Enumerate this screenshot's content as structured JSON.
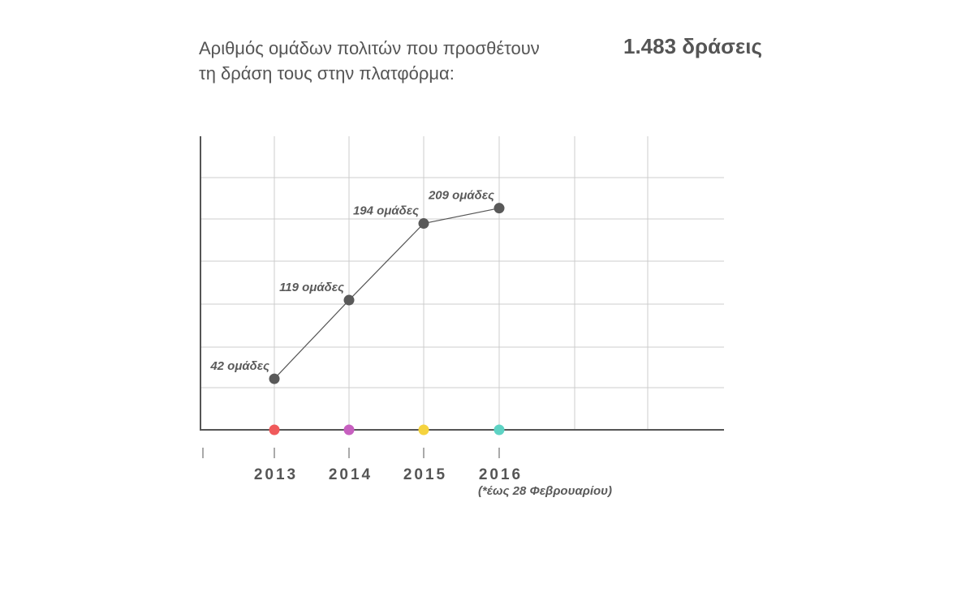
{
  "header": {
    "title_line1": "Αριθμός ομάδων πολιτών που προσθέτουν",
    "title_line2": "τη δράση τους στην πλατφόρμα:",
    "total": "1.483 δράσεις"
  },
  "chart_data": {
    "type": "line",
    "title": "Αριθμός ομάδων πολιτών που προσθέτουν τη δράση τους στην πλατφόρμα:",
    "categories": [
      "2013",
      "2014",
      "2015",
      "2016"
    ],
    "values": [
      42,
      119,
      194,
      209
    ],
    "point_labels": [
      "42 ομάδες",
      "119 ομάδες",
      "194 ομάδες",
      "209 ομάδες"
    ],
    "x_note": "(*έως 28 Φεβρουαρίου)",
    "marker_colors": [
      "#f05a5b",
      "#c760c0",
      "#f5d33f",
      "#5ed3c4"
    ],
    "line_color": "#555555",
    "grid": true,
    "grid_color": "#cccccc",
    "xlabel": "",
    "ylabel": ""
  }
}
